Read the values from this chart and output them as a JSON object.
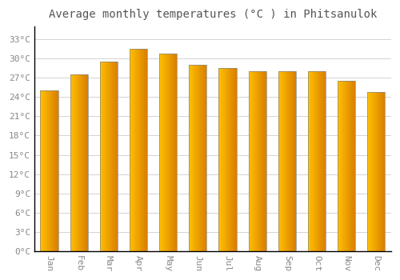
{
  "title": "Average monthly temperatures (°C ) in Phitsanulok",
  "months": [
    "Jan",
    "Feb",
    "Mar",
    "Apr",
    "May",
    "Jun",
    "Jul",
    "Aug",
    "Sep",
    "Oct",
    "Nov",
    "Dec"
  ],
  "values": [
    25.0,
    27.5,
    29.5,
    31.5,
    30.8,
    29.0,
    28.5,
    28.0,
    28.0,
    28.0,
    26.5,
    24.8
  ],
  "bar_color_left": "#FFB700",
  "bar_color_right": "#F07000",
  "bar_color_main": "#FFA500",
  "bar_edge_color": "#888888",
  "background_color": "#FFFFFF",
  "grid_color": "#CCCCCC",
  "yticks": [
    0,
    3,
    6,
    9,
    12,
    15,
    18,
    21,
    24,
    27,
    30,
    33
  ],
  "ylim": [
    0,
    35
  ],
  "title_fontsize": 10,
  "tick_fontsize": 8,
  "title_color": "#555555",
  "tick_color": "#888888",
  "bar_width": 0.6
}
